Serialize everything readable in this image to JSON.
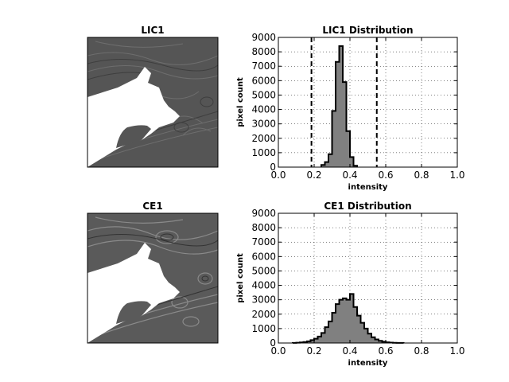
{
  "image_panels": [
    {
      "title": "LIC1"
    },
    {
      "title": "CE1"
    }
  ],
  "chart_data": [
    {
      "type": "bar",
      "title": "LIC1 Distribution",
      "xlabel": "intensity",
      "ylabel": "pixel count",
      "xlim": [
        0.0,
        1.0
      ],
      "ylim": [
        0,
        9000
      ],
      "xticks": [
        "0.0",
        "0.2",
        "0.4",
        "0.6",
        "0.8",
        "1.0"
      ],
      "yticks": [
        "0",
        "1000",
        "2000",
        "3000",
        "4000",
        "5000",
        "6000",
        "7000",
        "8000",
        "9000"
      ],
      "grid": true,
      "bin_width": 0.02,
      "bins_x": [
        0.24,
        0.26,
        0.28,
        0.3,
        0.32,
        0.34,
        0.36,
        0.38,
        0.4,
        0.42
      ],
      "values": [
        150,
        350,
        900,
        3900,
        7300,
        8400,
        5900,
        2500,
        700,
        100
      ],
      "vlines": [
        0.185,
        0.55
      ],
      "fill_color": "#808080",
      "edge_color": "#000000"
    },
    {
      "type": "bar",
      "title": "CE1 Distribution",
      "xlabel": "intensity",
      "ylabel": "pixel count",
      "xlim": [
        0.0,
        1.0
      ],
      "ylim": [
        0,
        9000
      ],
      "xticks": [
        "0.0",
        "0.2",
        "0.4",
        "0.6",
        "0.8",
        "1.0"
      ],
      "yticks": [
        "0",
        "1000",
        "2000",
        "3000",
        "4000",
        "5000",
        "6000",
        "7000",
        "8000",
        "9000"
      ],
      "grid": true,
      "bin_width": 0.02,
      "bins_x": [
        0.08,
        0.1,
        0.12,
        0.14,
        0.16,
        0.18,
        0.2,
        0.22,
        0.24,
        0.26,
        0.28,
        0.3,
        0.32,
        0.34,
        0.36,
        0.38,
        0.4,
        0.42,
        0.44,
        0.46,
        0.48,
        0.5,
        0.52,
        0.54,
        0.56,
        0.58,
        0.6,
        0.62,
        0.64,
        0.66,
        0.68
      ],
      "values": [
        10,
        20,
        40,
        70,
        120,
        200,
        300,
        450,
        700,
        1100,
        1500,
        2100,
        2700,
        3000,
        3100,
        3000,
        3400,
        2500,
        1900,
        1400,
        1000,
        650,
        400,
        250,
        150,
        90,
        50,
        30,
        15,
        8,
        4
      ],
      "fill_color": "#808080",
      "edge_color": "#000000"
    }
  ]
}
